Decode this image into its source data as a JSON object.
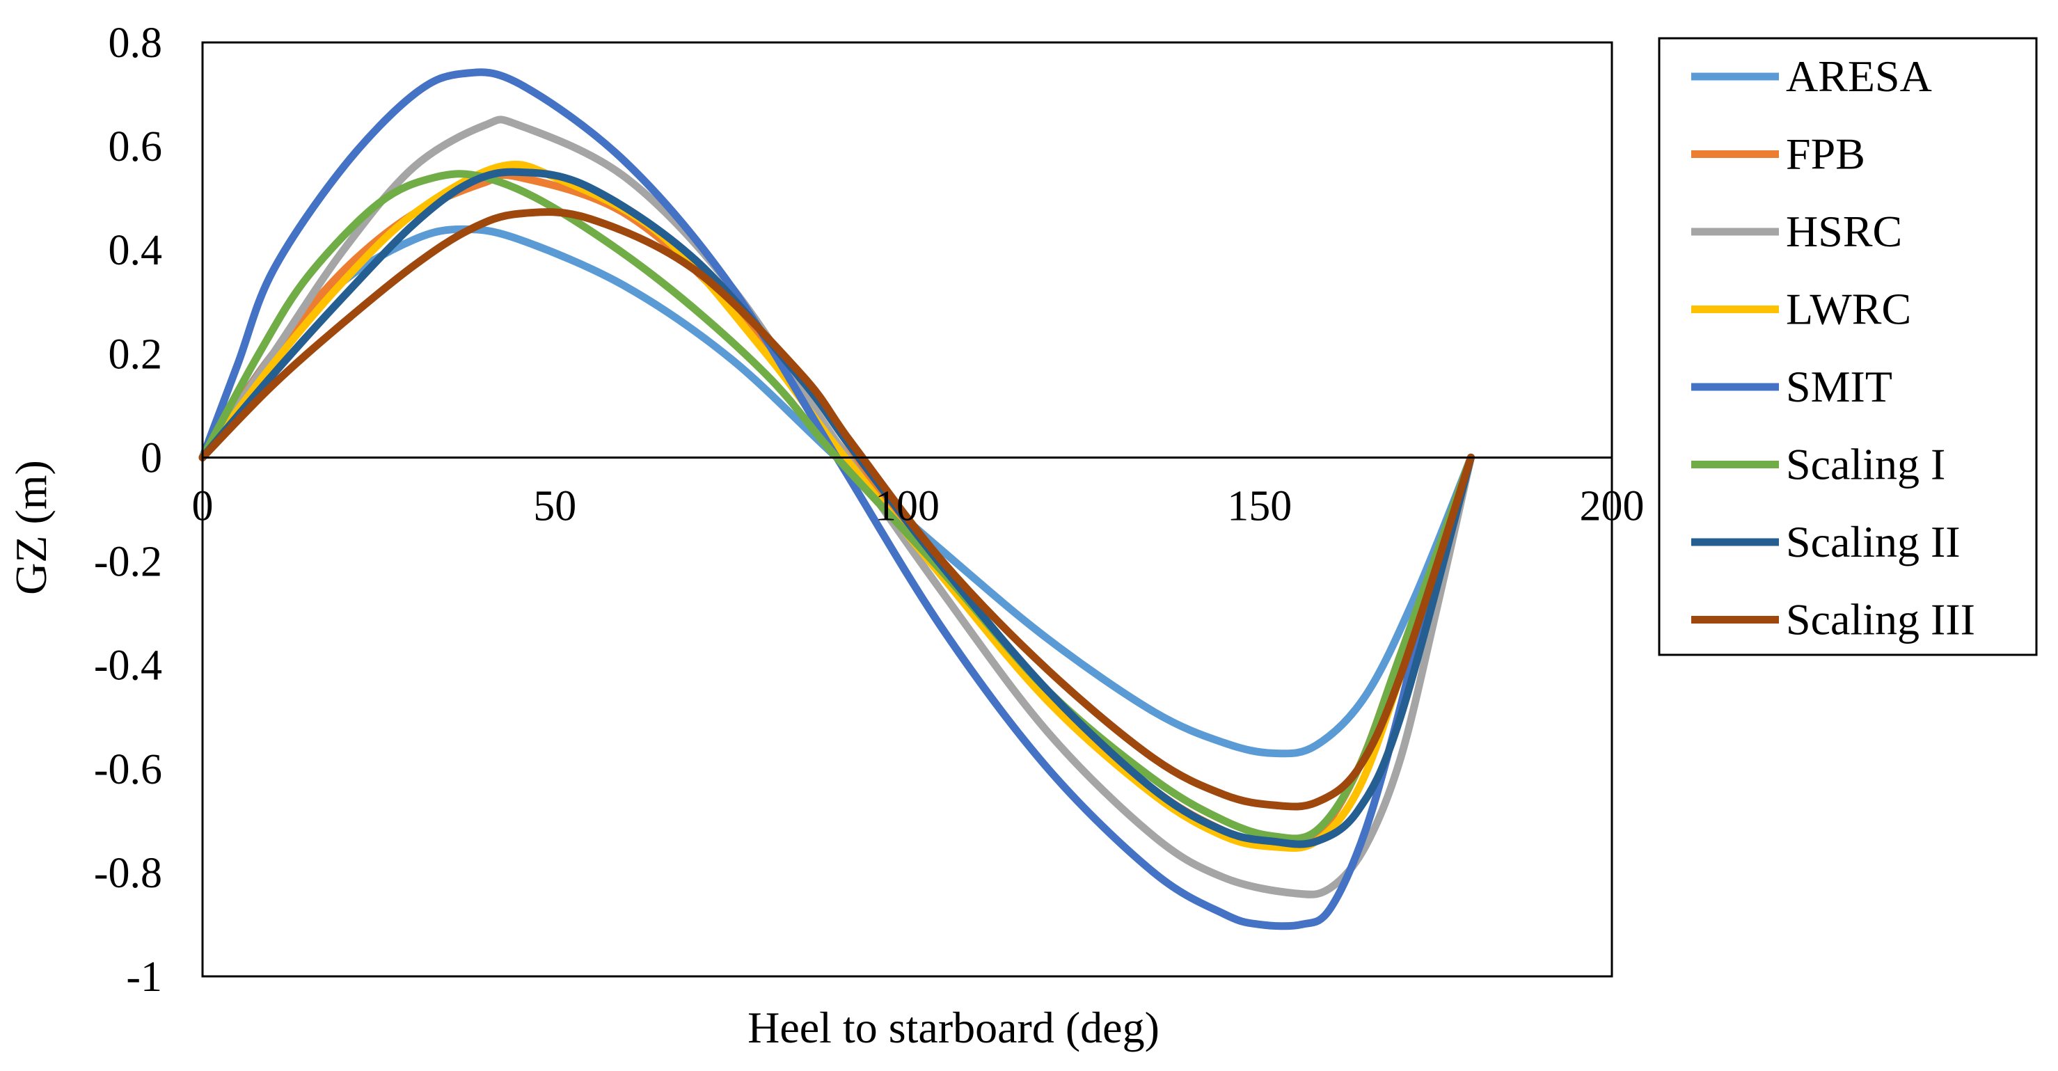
{
  "chart_data": {
    "type": "line",
    "title": "",
    "xlabel": "Heel to starboard (deg)",
    "ylabel": "GZ (m)",
    "xlim": [
      0,
      200
    ],
    "ylim": [
      -1,
      0.8
    ],
    "xticks": [
      0,
      50,
      100,
      150,
      200
    ],
    "yticks": [
      0.8,
      0.6,
      0.4,
      0.2,
      0,
      -0.2,
      -0.4,
      -0.6,
      -0.8,
      -1
    ],
    "xtick_labels": [
      "0",
      "50",
      "100",
      "150",
      "200"
    ],
    "ytick_labels": [
      "0.8",
      "0.6",
      "0.4",
      "0.2",
      "0",
      "-0.2",
      "-0.4",
      "-0.6",
      "-0.8",
      "-1"
    ],
    "grid": false,
    "legend_position": "right",
    "series": [
      {
        "name": "ARESA",
        "color": "#5B9BD5",
        "x": [
          0,
          10,
          20,
          30,
          37,
          45,
          60,
          75,
          90,
          105,
          120,
          135,
          145,
          152,
          158,
          165,
          172,
          180
        ],
        "y": [
          0,
          0.2,
          0.34,
          0.42,
          0.44,
          0.42,
          0.33,
          0.19,
          0.0,
          -0.18,
          -0.35,
          -0.49,
          -0.55,
          -0.57,
          -0.555,
          -0.46,
          -0.27,
          0
        ]
      },
      {
        "name": "FPB",
        "color": "#ED7D31",
        "x": [
          0,
          10,
          20,
          30,
          40,
          45,
          60,
          75,
          90,
          105,
          120,
          135,
          145,
          152,
          158,
          164,
          170,
          180
        ],
        "y": [
          0,
          0.2,
          0.36,
          0.47,
          0.53,
          0.54,
          0.47,
          0.29,
          0.03,
          -0.22,
          -0.46,
          -0.64,
          -0.72,
          -0.75,
          -0.73,
          -0.6,
          -0.38,
          0
        ]
      },
      {
        "name": "HSRC",
        "color": "#A5A5A5",
        "x": [
          0,
          10,
          20,
          30,
          40,
          45,
          60,
          75,
          90,
          105,
          120,
          135,
          145,
          155,
          160,
          165,
          170,
          175,
          180
        ],
        "y": [
          0,
          0.2,
          0.4,
          0.56,
          0.64,
          0.64,
          0.54,
          0.33,
          0.03,
          -0.26,
          -0.53,
          -0.73,
          -0.81,
          -0.84,
          -0.83,
          -0.75,
          -0.58,
          -0.3,
          0
        ]
      },
      {
        "name": "LWRC",
        "color": "#FFC000",
        "x": [
          0,
          10,
          20,
          30,
          42,
          50,
          65,
          80,
          90,
          105,
          120,
          135,
          145,
          152,
          158,
          164,
          170,
          180
        ],
        "y": [
          0,
          0.18,
          0.34,
          0.47,
          0.56,
          0.54,
          0.43,
          0.2,
          0.02,
          -0.23,
          -0.47,
          -0.65,
          -0.73,
          -0.75,
          -0.74,
          -0.64,
          -0.42,
          0
        ]
      },
      {
        "name": "SMIT",
        "color": "#4472C4",
        "x": [
          0,
          5,
          10,
          20,
          30,
          37,
          45,
          60,
          75,
          90,
          105,
          120,
          135,
          145,
          150,
          156,
          160,
          165,
          170,
          175,
          180
        ],
        "y": [
          0,
          0.18,
          0.36,
          0.56,
          0.7,
          0.74,
          0.72,
          0.57,
          0.33,
          0.0,
          -0.33,
          -0.6,
          -0.8,
          -0.88,
          -0.9,
          -0.9,
          -0.87,
          -0.72,
          -0.48,
          -0.2,
          0
        ]
      },
      {
        "name": "Scaling I",
        "color": "#70AD47",
        "x": [
          0,
          8,
          15,
          25,
          33,
          40,
          50,
          65,
          80,
          90,
          105,
          120,
          135,
          145,
          152,
          158,
          164,
          170,
          180
        ],
        "y": [
          0,
          0.2,
          0.35,
          0.49,
          0.54,
          0.54,
          0.48,
          0.34,
          0.16,
          0.0,
          -0.22,
          -0.45,
          -0.62,
          -0.7,
          -0.73,
          -0.72,
          -0.6,
          -0.38,
          0
        ]
      },
      {
        "name": "Scaling II",
        "color": "#255E91",
        "x": [
          0,
          10,
          20,
          30,
          38,
          45,
          55,
          70,
          85,
          92,
          105,
          120,
          135,
          145,
          152,
          158,
          164,
          170,
          180
        ],
        "y": [
          0,
          0.16,
          0.31,
          0.45,
          0.53,
          0.55,
          0.52,
          0.38,
          0.15,
          0.02,
          -0.21,
          -0.45,
          -0.64,
          -0.72,
          -0.74,
          -0.74,
          -0.68,
          -0.5,
          0
        ]
      },
      {
        "name": "Scaling III",
        "color": "#9E480E",
        "x": [
          0,
          10,
          20,
          30,
          38,
          45,
          55,
          70,
          85,
          92,
          105,
          120,
          135,
          145,
          152,
          158,
          164,
          170,
          180
        ],
        "y": [
          0,
          0.14,
          0.26,
          0.37,
          0.44,
          0.47,
          0.46,
          0.36,
          0.16,
          0.03,
          -0.2,
          -0.41,
          -0.58,
          -0.65,
          -0.67,
          -0.665,
          -0.6,
          -0.42,
          0
        ]
      }
    ]
  }
}
